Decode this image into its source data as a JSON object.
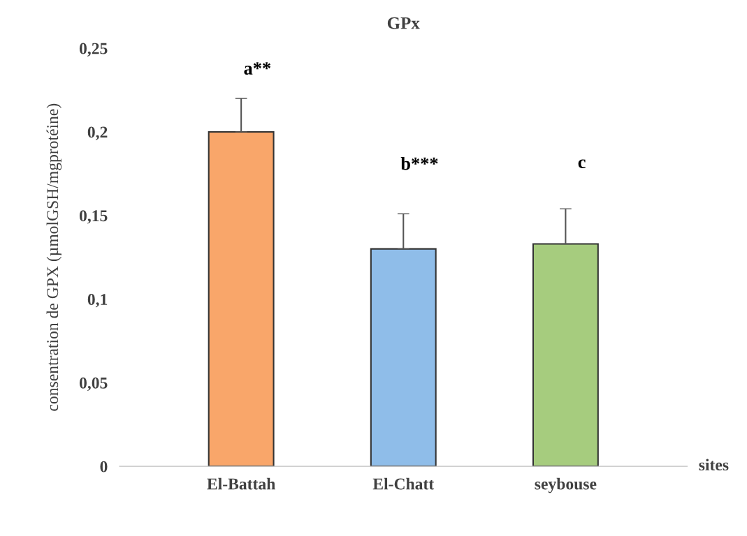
{
  "chart_data": {
    "type": "bar",
    "title": "GPx",
    "xlabel": "sites",
    "ylabel": "consentration de GPX (µmolGSH/mgprotéine)",
    "categories": [
      "El-Battah",
      "El-Chatt",
      "seybouse"
    ],
    "values": [
      0.2,
      0.13,
      0.133
    ],
    "errors": [
      [
        0.2,
        0.22
      ],
      [
        0.13,
        0.151
      ],
      [
        0.133,
        0.154
      ]
    ],
    "colors": [
      "#f9a66a",
      "#8fbde9",
      "#a6cc7e"
    ],
    "ylim": [
      0,
      0.25
    ],
    "yticks": [
      {
        "value": 0,
        "label": "0"
      },
      {
        "value": 0.05,
        "label": "0,05"
      },
      {
        "value": 0.1,
        "label": "0,1"
      },
      {
        "value": 0.15,
        "label": "0,15"
      },
      {
        "value": 0.2,
        "label": "0,2"
      },
      {
        "value": 0.25,
        "label": "0,25"
      }
    ],
    "grid": false,
    "legend": false,
    "annotations": [
      "a**",
      "b***",
      "c"
    ]
  }
}
